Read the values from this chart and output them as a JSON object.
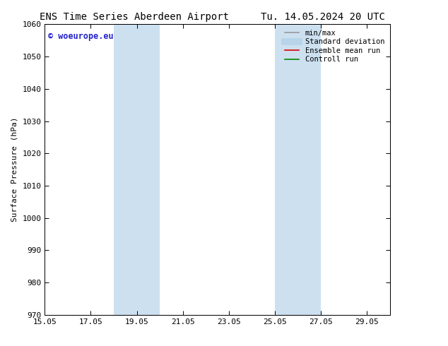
{
  "title_left": "ENS Time Series Aberdeen Airport",
  "title_right": "Tu. 14.05.2024 20 UTC",
  "ylabel": "Surface Pressure (hPa)",
  "xlim_min": 15.05,
  "xlim_max": 30.05,
  "ylim_min": 970,
  "ylim_max": 1060,
  "xticks": [
    15.05,
    17.05,
    19.05,
    21.05,
    23.05,
    25.05,
    27.05,
    29.05
  ],
  "xtick_labels": [
    "15.05",
    "17.05",
    "19.05",
    "21.05",
    "23.05",
    "25.05",
    "27.05",
    "29.05"
  ],
  "yticks": [
    970,
    980,
    990,
    1000,
    1010,
    1020,
    1030,
    1040,
    1050,
    1060
  ],
  "shaded_regions": [
    {
      "xmin": 18.05,
      "xmax": 20.05
    },
    {
      "xmin": 25.05,
      "xmax": 27.05
    }
  ],
  "shaded_color": "#cce0f0",
  "watermark_text": "© woeurope.eu",
  "watermark_color": "#2222cc",
  "legend_items": [
    {
      "label": "min/max",
      "color": "#999999",
      "lw": 1.2
    },
    {
      "label": "Standard deviation",
      "color": "#b8d4e8",
      "lw": 7
    },
    {
      "label": "Ensemble mean run",
      "color": "#dd0000",
      "lw": 1.2
    },
    {
      "label": "Controll run",
      "color": "#008800",
      "lw": 1.2
    }
  ],
  "bg_color": "#ffffff",
  "title_fontsize": 10,
  "label_fontsize": 8,
  "tick_fontsize": 8,
  "legend_fontsize": 7.5
}
